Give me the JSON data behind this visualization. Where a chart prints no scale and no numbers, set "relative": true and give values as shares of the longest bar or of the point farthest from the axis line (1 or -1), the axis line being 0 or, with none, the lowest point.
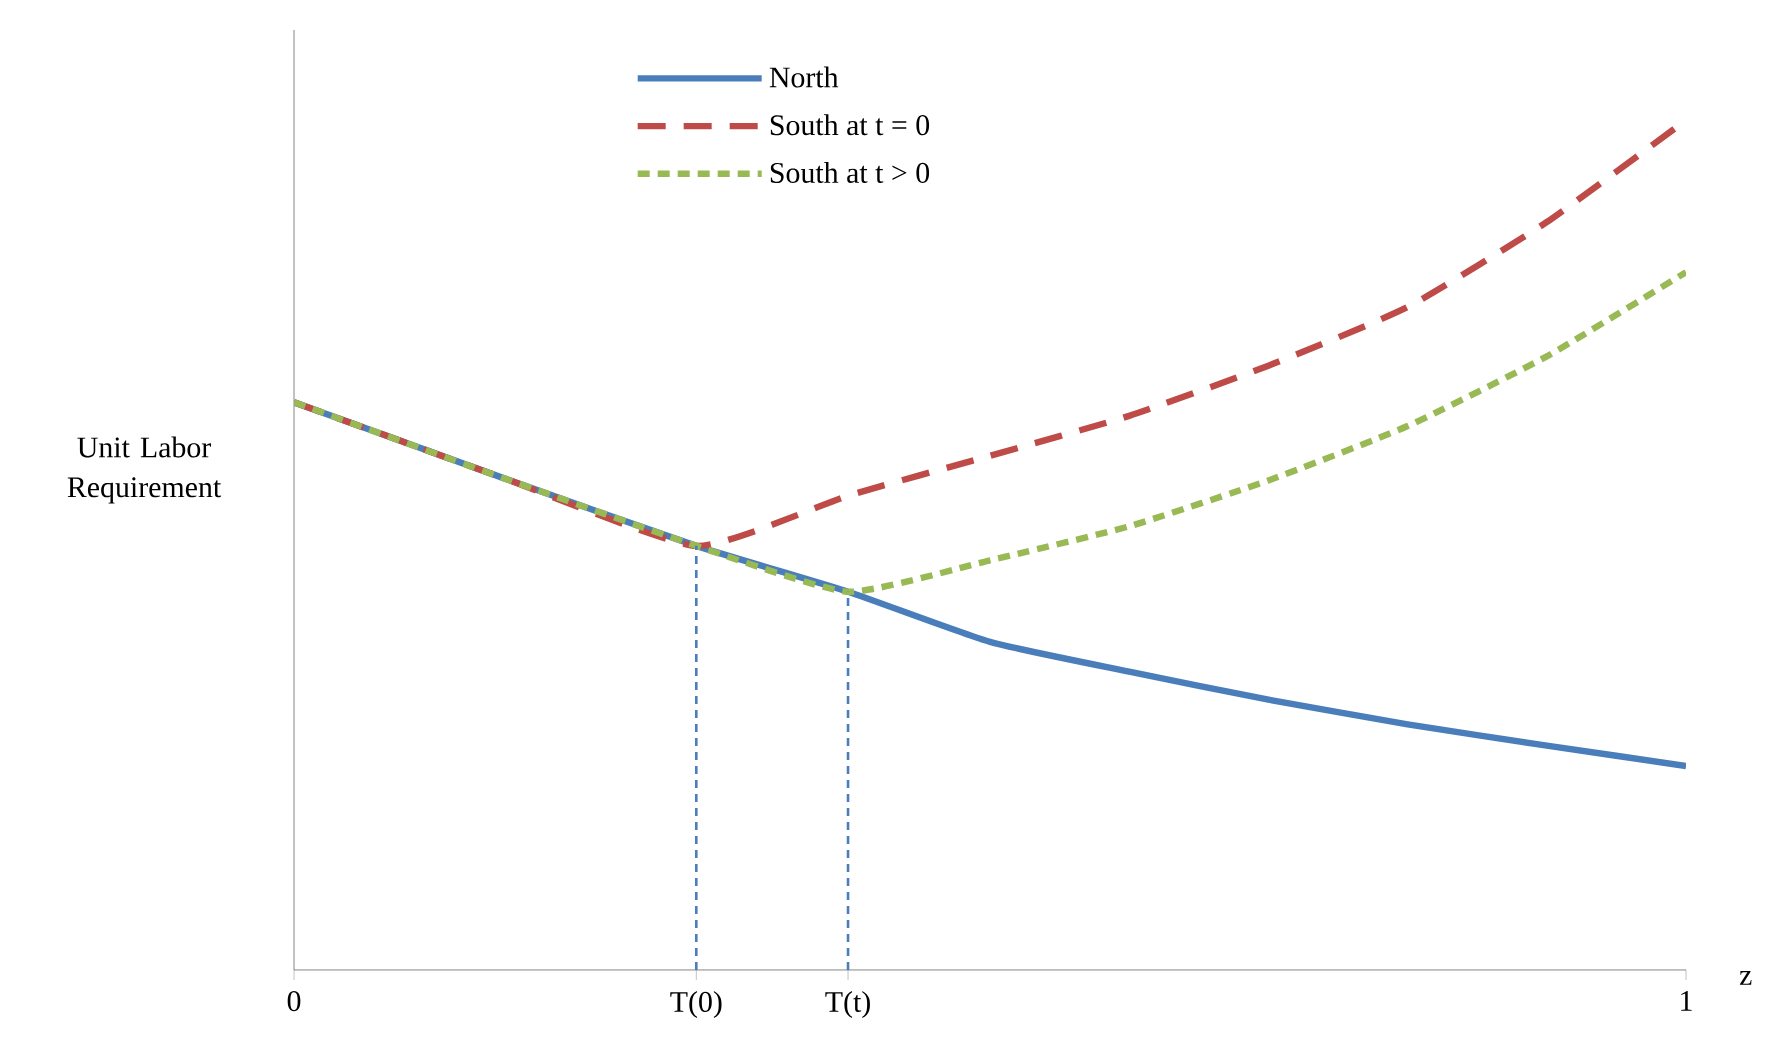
{
  "chart_data": {
    "type": "line",
    "relative": true,
    "xlabel": "z",
    "ylabel": "Unit Labor Requirement",
    "xlim": [
      0,
      1
    ],
    "xticks": [
      0,
      {
        "value": 0.289,
        "label": "T(0)"
      },
      {
        "value": 0.398,
        "label": "T(t)"
      },
      1
    ],
    "tick_labels": "x",
    "grid": false,
    "legend": "top",
    "marker": "none",
    "ref_lines": [
      {
        "axis": "x",
        "value": 0.289,
        "color": "#4a7ebb",
        "line_style": "dashed"
      },
      {
        "axis": "x",
        "value": 0.398,
        "color": "#4a7ebb",
        "line_style": "dashed"
      }
    ],
    "series": [
      {
        "name": "North",
        "color": "#4a7ebb",
        "line_style": "solid",
        "x": [
          0,
          0.15,
          0.289,
          0.398,
          0.5,
          0.6,
          0.7,
          0.8,
          0.9,
          1
        ],
        "values": [
          0.668,
          0.579,
          0.499,
          0.445,
          0.386,
          0.351,
          0.318,
          0.289,
          0.264,
          0.24
        ]
      },
      {
        "name": "South at t = 0",
        "color": "#be4b48",
        "line_style": "dashed",
        "x": [
          0,
          0.15,
          0.289,
          0.398,
          0.5,
          0.6,
          0.7,
          0.8,
          0.9,
          1
        ],
        "values": [
          0.668,
          0.579,
          0.499,
          0.558,
          0.605,
          0.652,
          0.711,
          0.78,
          0.88,
          1
        ]
      },
      {
        "name": "South at t > 0",
        "color": "#98b954",
        "line_style": "dotted",
        "x": [
          0,
          0.15,
          0.289,
          0.398,
          0.5,
          0.6,
          0.7,
          0.8,
          0.9,
          1
        ],
        "values": [
          0.668,
          0.579,
          0.499,
          0.445,
          0.482,
          0.522,
          0.576,
          0.64,
          0.722,
          0.821
        ]
      }
    ]
  }
}
